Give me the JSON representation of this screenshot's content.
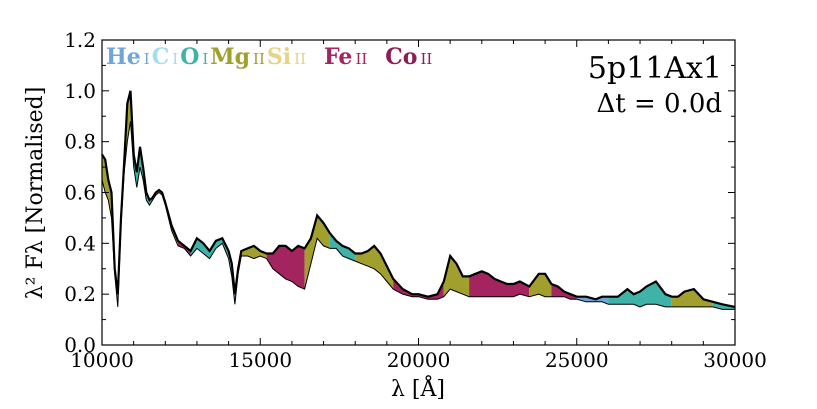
{
  "chart_data": {
    "type": "area",
    "title": "5p11Ax1",
    "annotation": "Δt = 0.0d",
    "xlabel": "λ [Å]",
    "ylabel": "λ² Fλ [Normalised]",
    "xlim": [
      10000,
      30000
    ],
    "ylim": [
      0.0,
      1.2
    ],
    "xticks": [
      10000,
      15000,
      20000,
      25000,
      30000
    ],
    "xtick_labels": [
      "10000",
      "15000",
      "20000",
      "25000",
      "30000"
    ],
    "yticks": [
      0.0,
      0.2,
      0.4,
      0.6,
      0.8,
      1.0,
      1.2
    ],
    "ytick_labels": [
      "0.0",
      "0.2",
      "0.4",
      "0.6",
      "0.8",
      "1.0",
      "1.2"
    ],
    "legend": [
      {
        "element": "He",
        "ion": "I",
        "color": "#6ea6d9"
      },
      {
        "element": "C",
        "ion": "I",
        "color": "#a6dced"
      },
      {
        "element": "O",
        "ion": "I",
        "color": "#3fb3a8"
      },
      {
        "element": "Mg",
        "ion": "II",
        "color": "#a1a02e"
      },
      {
        "element": "Si",
        "ion": "II",
        "color": "#e5d486"
      },
      {
        "element": "Fe",
        "ion": "II",
        "color": "#a3245f"
      },
      {
        "element": "Co",
        "ion": "II",
        "color": "#8e1c55"
      }
    ],
    "x": [
      10000,
      10100,
      10200,
      10300,
      10400,
      10500,
      10600,
      10700,
      10800,
      10900,
      11000,
      11100,
      11200,
      11300,
      11400,
      11500,
      11600,
      11700,
      11800,
      11900,
      12000,
      12200,
      12400,
      12600,
      12800,
      13000,
      13200,
      13400,
      13600,
      13800,
      14000,
      14100,
      14200,
      14300,
      14400,
      14600,
      14800,
      15000,
      15200,
      15400,
      15600,
      15800,
      16000,
      16200,
      16400,
      16600,
      16800,
      17000,
      17200,
      17400,
      17600,
      17800,
      18000,
      18200,
      18400,
      18600,
      18800,
      19000,
      19200,
      19500,
      19800,
      20000,
      20300,
      20600,
      20800,
      21000,
      21200,
      21400,
      21600,
      21800,
      22000,
      22200,
      22400,
      22600,
      22800,
      23000,
      23200,
      23500,
      23800,
      24000,
      24200,
      24400,
      24600,
      24800,
      25000,
      25300,
      25600,
      25800,
      26000,
      26300,
      26600,
      26800,
      27000,
      27200,
      27500,
      27800,
      28000,
      28200,
      28400,
      28700,
      29000,
      29300,
      29600,
      30000
    ],
    "series": [
      {
        "name": "total",
        "values": [
          0.75,
          0.73,
          0.65,
          0.6,
          0.3,
          0.2,
          0.5,
          0.72,
          0.95,
          1.0,
          0.75,
          0.68,
          0.78,
          0.7,
          0.6,
          0.57,
          0.58,
          0.6,
          0.61,
          0.6,
          0.56,
          0.47,
          0.41,
          0.39,
          0.37,
          0.42,
          0.4,
          0.37,
          0.41,
          0.42,
          0.37,
          0.32,
          0.2,
          0.3,
          0.37,
          0.38,
          0.39,
          0.37,
          0.36,
          0.36,
          0.39,
          0.39,
          0.37,
          0.39,
          0.38,
          0.42,
          0.51,
          0.48,
          0.44,
          0.41,
          0.39,
          0.38,
          0.36,
          0.36,
          0.37,
          0.39,
          0.36,
          0.31,
          0.26,
          0.22,
          0.2,
          0.2,
          0.19,
          0.2,
          0.25,
          0.35,
          0.32,
          0.27,
          0.27,
          0.28,
          0.29,
          0.28,
          0.26,
          0.25,
          0.24,
          0.24,
          0.25,
          0.23,
          0.28,
          0.28,
          0.24,
          0.23,
          0.21,
          0.2,
          0.19,
          0.19,
          0.18,
          0.19,
          0.19,
          0.19,
          0.22,
          0.2,
          0.21,
          0.23,
          0.25,
          0.2,
          0.19,
          0.19,
          0.21,
          0.22,
          0.18,
          0.17,
          0.16,
          0.15
        ]
      },
      {
        "name": "without_contributions",
        "values": [
          0.65,
          0.6,
          0.57,
          0.5,
          0.28,
          0.15,
          0.47,
          0.68,
          0.8,
          0.88,
          0.7,
          0.62,
          0.7,
          0.65,
          0.57,
          0.55,
          0.57,
          0.59,
          0.6,
          0.59,
          0.55,
          0.45,
          0.39,
          0.38,
          0.35,
          0.38,
          0.36,
          0.34,
          0.38,
          0.4,
          0.34,
          0.27,
          0.16,
          0.28,
          0.35,
          0.35,
          0.34,
          0.35,
          0.34,
          0.3,
          0.28,
          0.26,
          0.25,
          0.23,
          0.22,
          0.32,
          0.42,
          0.39,
          0.38,
          0.38,
          0.35,
          0.34,
          0.33,
          0.32,
          0.31,
          0.3,
          0.28,
          0.25,
          0.22,
          0.2,
          0.19,
          0.19,
          0.18,
          0.18,
          0.19,
          0.22,
          0.21,
          0.2,
          0.19,
          0.19,
          0.19,
          0.19,
          0.19,
          0.19,
          0.19,
          0.19,
          0.2,
          0.19,
          0.2,
          0.19,
          0.19,
          0.19,
          0.19,
          0.18,
          0.18,
          0.17,
          0.17,
          0.17,
          0.16,
          0.16,
          0.16,
          0.16,
          0.15,
          0.16,
          0.16,
          0.15,
          0.15,
          0.15,
          0.15,
          0.15,
          0.15,
          0.15,
          0.14,
          0.14
        ]
      }
    ],
    "bands": [
      {
        "species": "Mg II",
        "color": "#a1a02e",
        "range": [
          10000,
          10300
        ]
      },
      {
        "species": "He I",
        "color": "#6ea6d9",
        "range": [
          10300,
          10600
        ]
      },
      {
        "species": "Mg II",
        "color": "#a1a02e",
        "range": [
          10600,
          11000
        ]
      },
      {
        "species": "O I",
        "color": "#3fb3a8",
        "range": [
          11000,
          11700
        ]
      },
      {
        "species": "Mg II",
        "color": "#a1a02e",
        "range": [
          11700,
          12400
        ]
      },
      {
        "species": "Fe II",
        "color": "#a3245f",
        "range": [
          12400,
          12800
        ]
      },
      {
        "species": "O I",
        "color": "#3fb3a8",
        "range": [
          12800,
          14000
        ]
      },
      {
        "species": "He I",
        "color": "#6ea6d9",
        "range": [
          14000,
          14400
        ]
      },
      {
        "species": "Mg II",
        "color": "#a1a02e",
        "range": [
          14400,
          15200
        ]
      },
      {
        "species": "Fe II",
        "color": "#a3245f",
        "range": [
          15200,
          16400
        ]
      },
      {
        "species": "Mg II",
        "color": "#a1a02e",
        "range": [
          16400,
          17200
        ]
      },
      {
        "species": "O I",
        "color": "#3fb3a8",
        "range": [
          17200,
          18000
        ]
      },
      {
        "species": "Mg II",
        "color": "#a1a02e",
        "range": [
          18000,
          19200
        ]
      },
      {
        "species": "Fe II",
        "color": "#a3245f",
        "range": [
          19200,
          20800
        ]
      },
      {
        "species": "Mg II",
        "color": "#a1a02e",
        "range": [
          20800,
          21600
        ]
      },
      {
        "species": "Fe II",
        "color": "#a3245f",
        "range": [
          21600,
          23500
        ]
      },
      {
        "species": "Mg II",
        "color": "#a1a02e",
        "range": [
          23500,
          24200
        ]
      },
      {
        "species": "Fe II",
        "color": "#a3245f",
        "range": [
          24200,
          25000
        ]
      },
      {
        "species": "He I",
        "color": "#6ea6d9",
        "range": [
          25000,
          26000
        ]
      },
      {
        "species": "O I",
        "color": "#3fb3a8",
        "range": [
          26000,
          28000
        ]
      },
      {
        "species": "Mg II",
        "color": "#a1a02e",
        "range": [
          28000,
          29300
        ]
      },
      {
        "species": "O I",
        "color": "#3fb3a8",
        "range": [
          29300,
          30000
        ]
      }
    ]
  }
}
